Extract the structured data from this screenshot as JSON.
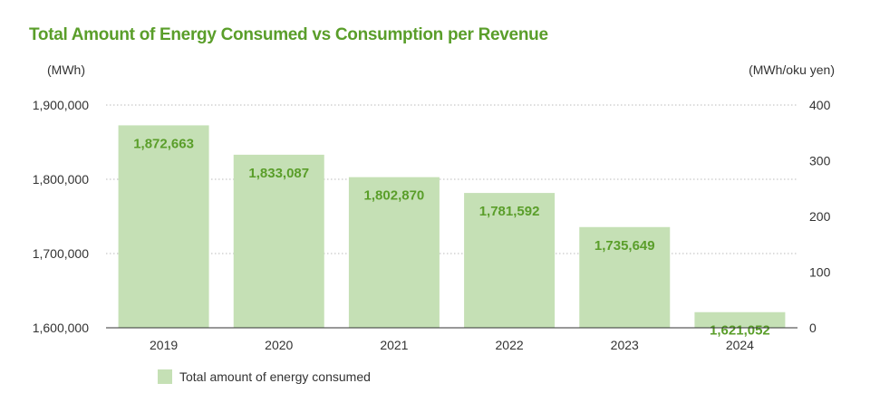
{
  "chart_data": {
    "type": "bar",
    "title": "Total Amount of Energy Consumed vs Consumption per Revenue",
    "categories": [
      "2019",
      "2020",
      "2021",
      "2022",
      "2023",
      "2024"
    ],
    "series": [
      {
        "name": "Total amount of energy consumed",
        "values": [
          1872663,
          1833087,
          1802870,
          1781592,
          1735649,
          1621052
        ],
        "labels": [
          "1,872,663",
          "1,833,087",
          "1,802,870",
          "1,781,592",
          "1,735,649",
          "1,621,052"
        ]
      }
    ],
    "left_axis": {
      "unit": "(MWh)",
      "ylim": [
        1600000,
        1900000
      ],
      "ticks": [
        1600000,
        1700000,
        1800000,
        1900000
      ],
      "tick_labels": [
        "1,600,000",
        "1,700,000",
        "1,800,000",
        "1,900,000"
      ]
    },
    "right_axis": {
      "unit": "(MWh/oku yen)",
      "ylim": [
        0,
        400
      ],
      "ticks": [
        0,
        100,
        200,
        300,
        400
      ],
      "tick_labels": [
        "0",
        "100",
        "200",
        "300",
        "400"
      ]
    },
    "grid": true,
    "legend_position": "bottom-left"
  },
  "colors": {
    "bar": "#c5e0b5",
    "label": "#5a9e2a",
    "grid": "#bbbbbb",
    "axis": "#333333"
  }
}
